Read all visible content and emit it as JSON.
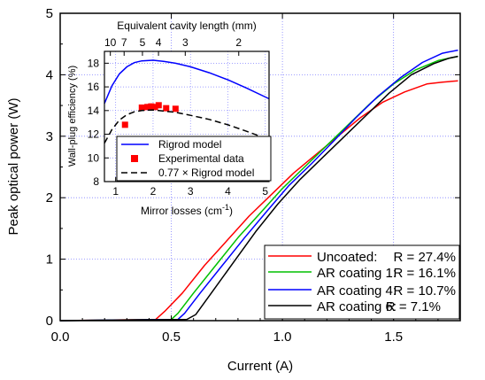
{
  "chart_data": [
    {
      "type": "line",
      "xlabel": "Current (A)",
      "ylabel": "Peak optical power (W)",
      "xlim": [
        0,
        1.8
      ],
      "ylim": [
        0,
        5
      ],
      "xticks": [
        "0.0",
        "0.5",
        "1.0",
        "1.5"
      ],
      "yticks": [
        "0",
        "1",
        "2",
        "3",
        "4",
        "5"
      ],
      "grid": true,
      "legend_position": "bottom-right",
      "series": [
        {
          "name": "Uncoated:",
          "label_value": "R = 27.4%",
          "color": "#ff0000",
          "points": [
            [
              0,
              0
            ],
            [
              0.43,
              0.02
            ],
            [
              0.47,
              0.15
            ],
            [
              0.55,
              0.45
            ],
            [
              0.65,
              0.9
            ],
            [
              0.75,
              1.3
            ],
            [
              0.85,
              1.7
            ],
            [
              0.95,
              2.05
            ],
            [
              1.05,
              2.4
            ],
            [
              1.15,
              2.7
            ],
            [
              1.25,
              3.0
            ],
            [
              1.35,
              3.3
            ],
            [
              1.45,
              3.55
            ],
            [
              1.55,
              3.72
            ],
            [
              1.65,
              3.85
            ],
            [
              1.72,
              3.88
            ],
            [
              1.79,
              3.9
            ]
          ]
        },
        {
          "name": "AR coating 1:",
          "label_value": "R = 16.1%",
          "color": "#00c000",
          "points": [
            [
              0,
              0
            ],
            [
              0.5,
              0.02
            ],
            [
              0.53,
              0.12
            ],
            [
              0.6,
              0.45
            ],
            [
              0.7,
              0.9
            ],
            [
              0.8,
              1.35
            ],
            [
              0.9,
              1.75
            ],
            [
              1.0,
              2.15
            ],
            [
              1.1,
              2.5
            ],
            [
              1.2,
              2.85
            ],
            [
              1.3,
              3.2
            ],
            [
              1.4,
              3.55
            ],
            [
              1.5,
              3.85
            ],
            [
              1.6,
              4.08
            ],
            [
              1.7,
              4.23
            ],
            [
              1.79,
              4.3
            ]
          ]
        },
        {
          "name": "AR coating 4:",
          "label_value": "R = 10.7%",
          "color": "#0000ff",
          "points": [
            [
              0,
              0
            ],
            [
              0.53,
              0.02
            ],
            [
              0.56,
              0.12
            ],
            [
              0.63,
              0.45
            ],
            [
              0.73,
              0.9
            ],
            [
              0.83,
              1.35
            ],
            [
              0.93,
              1.78
            ],
            [
              1.03,
              2.2
            ],
            [
              1.13,
              2.55
            ],
            [
              1.23,
              2.92
            ],
            [
              1.33,
              3.3
            ],
            [
              1.43,
              3.65
            ],
            [
              1.53,
              3.95
            ],
            [
              1.63,
              4.2
            ],
            [
              1.72,
              4.35
            ],
            [
              1.79,
              4.4
            ]
          ]
        },
        {
          "name": "AR coating 6:",
          "label_value": "R = 7.1%",
          "color": "#000000",
          "points": [
            [
              0,
              0
            ],
            [
              0.57,
              0.02
            ],
            [
              0.61,
              0.1
            ],
            [
              0.68,
              0.45
            ],
            [
              0.78,
              0.95
            ],
            [
              0.88,
              1.45
            ],
            [
              0.98,
              1.9
            ],
            [
              1.08,
              2.3
            ],
            [
              1.18,
              2.65
            ],
            [
              1.28,
              3.0
            ],
            [
              1.38,
              3.35
            ],
            [
              1.48,
              3.7
            ],
            [
              1.58,
              4.0
            ],
            [
              1.68,
              4.18
            ],
            [
              1.75,
              4.27
            ],
            [
              1.79,
              4.3
            ]
          ]
        }
      ]
    },
    {
      "type": "line",
      "xlabel": "Mirror losses (cm",
      "xlabel_sup": "-1",
      "xlabel_end": ")",
      "ylabel": "Wall-plug efficiency (%)",
      "top_xlabel": "Equivalent cavity length (mm)",
      "xlim": [
        0.7,
        5.1
      ],
      "ylim": [
        8,
        19
      ],
      "xticks": [
        "1",
        "2",
        "3",
        "4",
        "5"
      ],
      "yticks": [
        "8",
        "10",
        "12",
        "14",
        "16",
        "18"
      ],
      "top_xticks": [
        {
          "label": "10",
          "value": 0.858
        },
        {
          "label": "7",
          "value": 1.226
        },
        {
          "label": "5",
          "value": 1.716
        },
        {
          "label": "4",
          "value": 2.145
        },
        {
          "label": "3",
          "value": 2.86
        },
        {
          "label": "2",
          "value": 4.29
        }
      ],
      "grid": true,
      "legend_position": "bottom",
      "series": [
        {
          "name": "Rigrod model",
          "color": "#0000ff",
          "style": "solid",
          "points": [
            [
              0.7,
              14.6
            ],
            [
              0.9,
              16.1
            ],
            [
              1.1,
              17.1
            ],
            [
              1.3,
              17.7
            ],
            [
              1.5,
              18.05
            ],
            [
              1.7,
              18.2
            ],
            [
              2.0,
              18.25
            ],
            [
              2.3,
              18.15
            ],
            [
              2.6,
              18.0
            ],
            [
              3.0,
              17.7
            ],
            [
              3.5,
              17.2
            ],
            [
              4.0,
              16.6
            ],
            [
              4.5,
              15.9
            ],
            [
              5.1,
              15.0
            ]
          ]
        },
        {
          "name": "Experimental data",
          "color": "#ff0000",
          "style": "markers",
          "points": [
            [
              1.25,
              12.8
            ],
            [
              1.7,
              14.25
            ],
            [
              1.85,
              14.3
            ],
            [
              1.95,
              14.35
            ],
            [
              2.05,
              14.3
            ],
            [
              2.15,
              14.45
            ],
            [
              2.35,
              14.2
            ],
            [
              2.6,
              14.15
            ]
          ]
        },
        {
          "name": "0.77 × Rigrod model",
          "color": "#000000",
          "style": "dashed",
          "points": [
            [
              0.7,
              11.25
            ],
            [
              0.9,
              12.4
            ],
            [
              1.1,
              13.2
            ],
            [
              1.3,
              13.65
            ],
            [
              1.5,
              13.9
            ],
            [
              1.7,
              14.0
            ],
            [
              2.0,
              14.05
            ],
            [
              2.3,
              13.95
            ],
            [
              2.6,
              13.85
            ],
            [
              3.0,
              13.6
            ],
            [
              3.5,
              13.25
            ],
            [
              4.0,
              12.8
            ],
            [
              4.5,
              12.25
            ],
            [
              5.1,
              11.55
            ]
          ]
        }
      ]
    }
  ]
}
